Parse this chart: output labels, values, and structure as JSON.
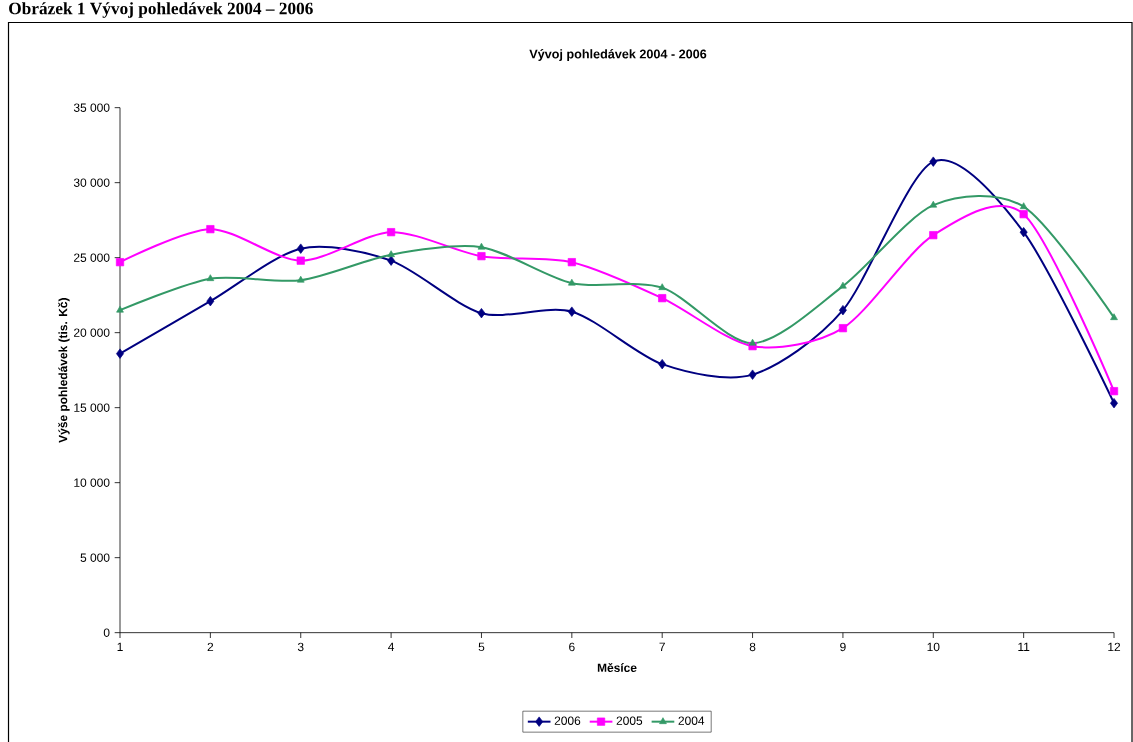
{
  "chart_data": {
    "type": "line",
    "title": "Vývoj pohledávek 2004 - 2006",
    "xlabel": "Měsíce",
    "ylabel": "Výše pohledávek (tis. Kč)",
    "annotations": [
      "Obrázek 1 Vývoj pohledávek 2004 – 2006"
    ],
    "categories": [
      "1",
      "2",
      "3",
      "4",
      "5",
      "6",
      "7",
      "8",
      "9",
      "10",
      "11",
      "12"
    ],
    "series": [
      {
        "name": "2006",
        "color": "#000080",
        "marker": "diamond",
        "values": [
          18600,
          22100,
          25600,
          24800,
          21300,
          21400,
          17900,
          17200,
          21500,
          31400,
          26700,
          15300
        ]
      },
      {
        "name": "2005",
        "color": "#ff00ff",
        "marker": "square",
        "values": [
          24700,
          26900,
          24800,
          26700,
          25100,
          24700,
          22300,
          19100,
          20300,
          26500,
          27900,
          16100
        ]
      },
      {
        "name": "2004",
        "color": "#339966",
        "marker": "triangle",
        "values": [
          21500,
          23600,
          23500,
          25200,
          25700,
          23300,
          23000,
          19300,
          23100,
          28500,
          28400,
          21000
        ]
      }
    ],
    "ylim": [
      0,
      35000
    ],
    "yticks": [
      {
        "value": 0,
        "label": "0"
      },
      {
        "value": 5000,
        "label": "5 000"
      },
      {
        "value": 10000,
        "label": "10 000"
      },
      {
        "value": 15000,
        "label": "15 000"
      },
      {
        "value": 20000,
        "label": "20 000"
      },
      {
        "value": 25000,
        "label": "25 000"
      },
      {
        "value": 30000,
        "label": "30 000"
      },
      {
        "value": 35000,
        "label": "35 000"
      }
    ],
    "grid": false,
    "legend": "bottom",
    "line_style": "solid"
  }
}
